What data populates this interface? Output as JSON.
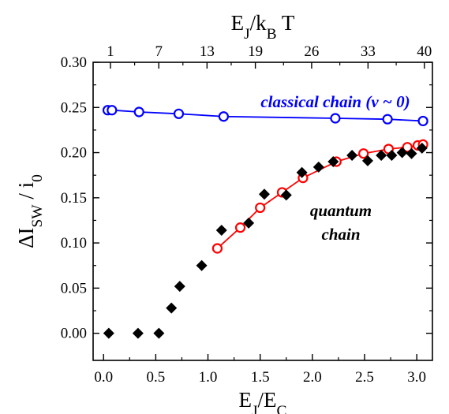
{
  "chart_data": {
    "type": "scatter",
    "xlabel": "E_J/E_C",
    "ylabel": "ΔI_SW / i_0",
    "top_xlabel": "E_J/k_B T",
    "xlim": [
      -0.1,
      3.15
    ],
    "ylim": [
      -0.03,
      0.3
    ],
    "x_ticks": [
      0.0,
      0.5,
      1.0,
      1.5,
      2.0,
      2.5,
      3.0
    ],
    "x_tick_labels": [
      "0.0",
      "0.5",
      "1.0",
      "1.5",
      "2.0",
      "2.5",
      "3.0"
    ],
    "y_ticks": [
      0.0,
      0.05,
      0.1,
      0.15,
      0.2,
      0.25,
      0.3
    ],
    "y_tick_labels": [
      "0.00",
      "0.05",
      "0.10",
      "0.15",
      "0.20",
      "0.25",
      "0.30"
    ],
    "top_ticks": [
      {
        "label": "1",
        "x": 0.066
      },
      {
        "label": "7",
        "x": 0.529
      },
      {
        "label": "13",
        "x": 0.991
      },
      {
        "label": "19",
        "x": 1.454
      },
      {
        "label": "26",
        "x": 1.993
      },
      {
        "label": "33",
        "x": 2.533
      },
      {
        "label": "40",
        "x": 3.073
      }
    ],
    "annotations": {
      "classical": "classical chain (ν ~ 0)",
      "quantum_line1": "quantum",
      "quantum_line2": "chain"
    },
    "colors": {
      "classical": "#0000ff",
      "quantum_fit": "#ff0000",
      "experiment": "#000000"
    },
    "series": [
      {
        "marker": "open-circle",
        "color": "#0000ff",
        "connected": true,
        "x": [
          0.04,
          0.08,
          0.34,
          0.72,
          1.15,
          2.22,
          2.72,
          3.06
        ],
        "y": [
          0.247,
          0.247,
          0.245,
          0.243,
          0.24,
          0.238,
          0.237,
          0.235
        ]
      },
      {
        "marker": "open-circle",
        "color": "#ff0000",
        "connected": true,
        "x": [
          1.09,
          1.31,
          1.5,
          1.71,
          1.91,
          2.23,
          2.49,
          2.73,
          2.91,
          3.01,
          3.06
        ],
        "y": [
          0.094,
          0.117,
          0.139,
          0.156,
          0.172,
          0.19,
          0.199,
          0.204,
          0.206,
          0.208,
          0.209
        ]
      },
      {
        "marker": "filled-diamond",
        "color": "#000000",
        "connected": false,
        "x": [
          0.05,
          0.33,
          0.53,
          0.65,
          0.73,
          0.94,
          1.13,
          1.39,
          1.54,
          1.75,
          1.9,
          2.06,
          2.2,
          2.38,
          2.53,
          2.66,
          2.76,
          2.86,
          2.95,
          3.05
        ],
        "y": [
          0.0,
          0.0,
          0.0,
          0.028,
          0.052,
          0.075,
          0.114,
          0.122,
          0.154,
          0.153,
          0.178,
          0.184,
          0.19,
          0.197,
          0.191,
          0.197,
          0.197,
          0.2,
          0.199,
          0.205
        ]
      }
    ]
  }
}
